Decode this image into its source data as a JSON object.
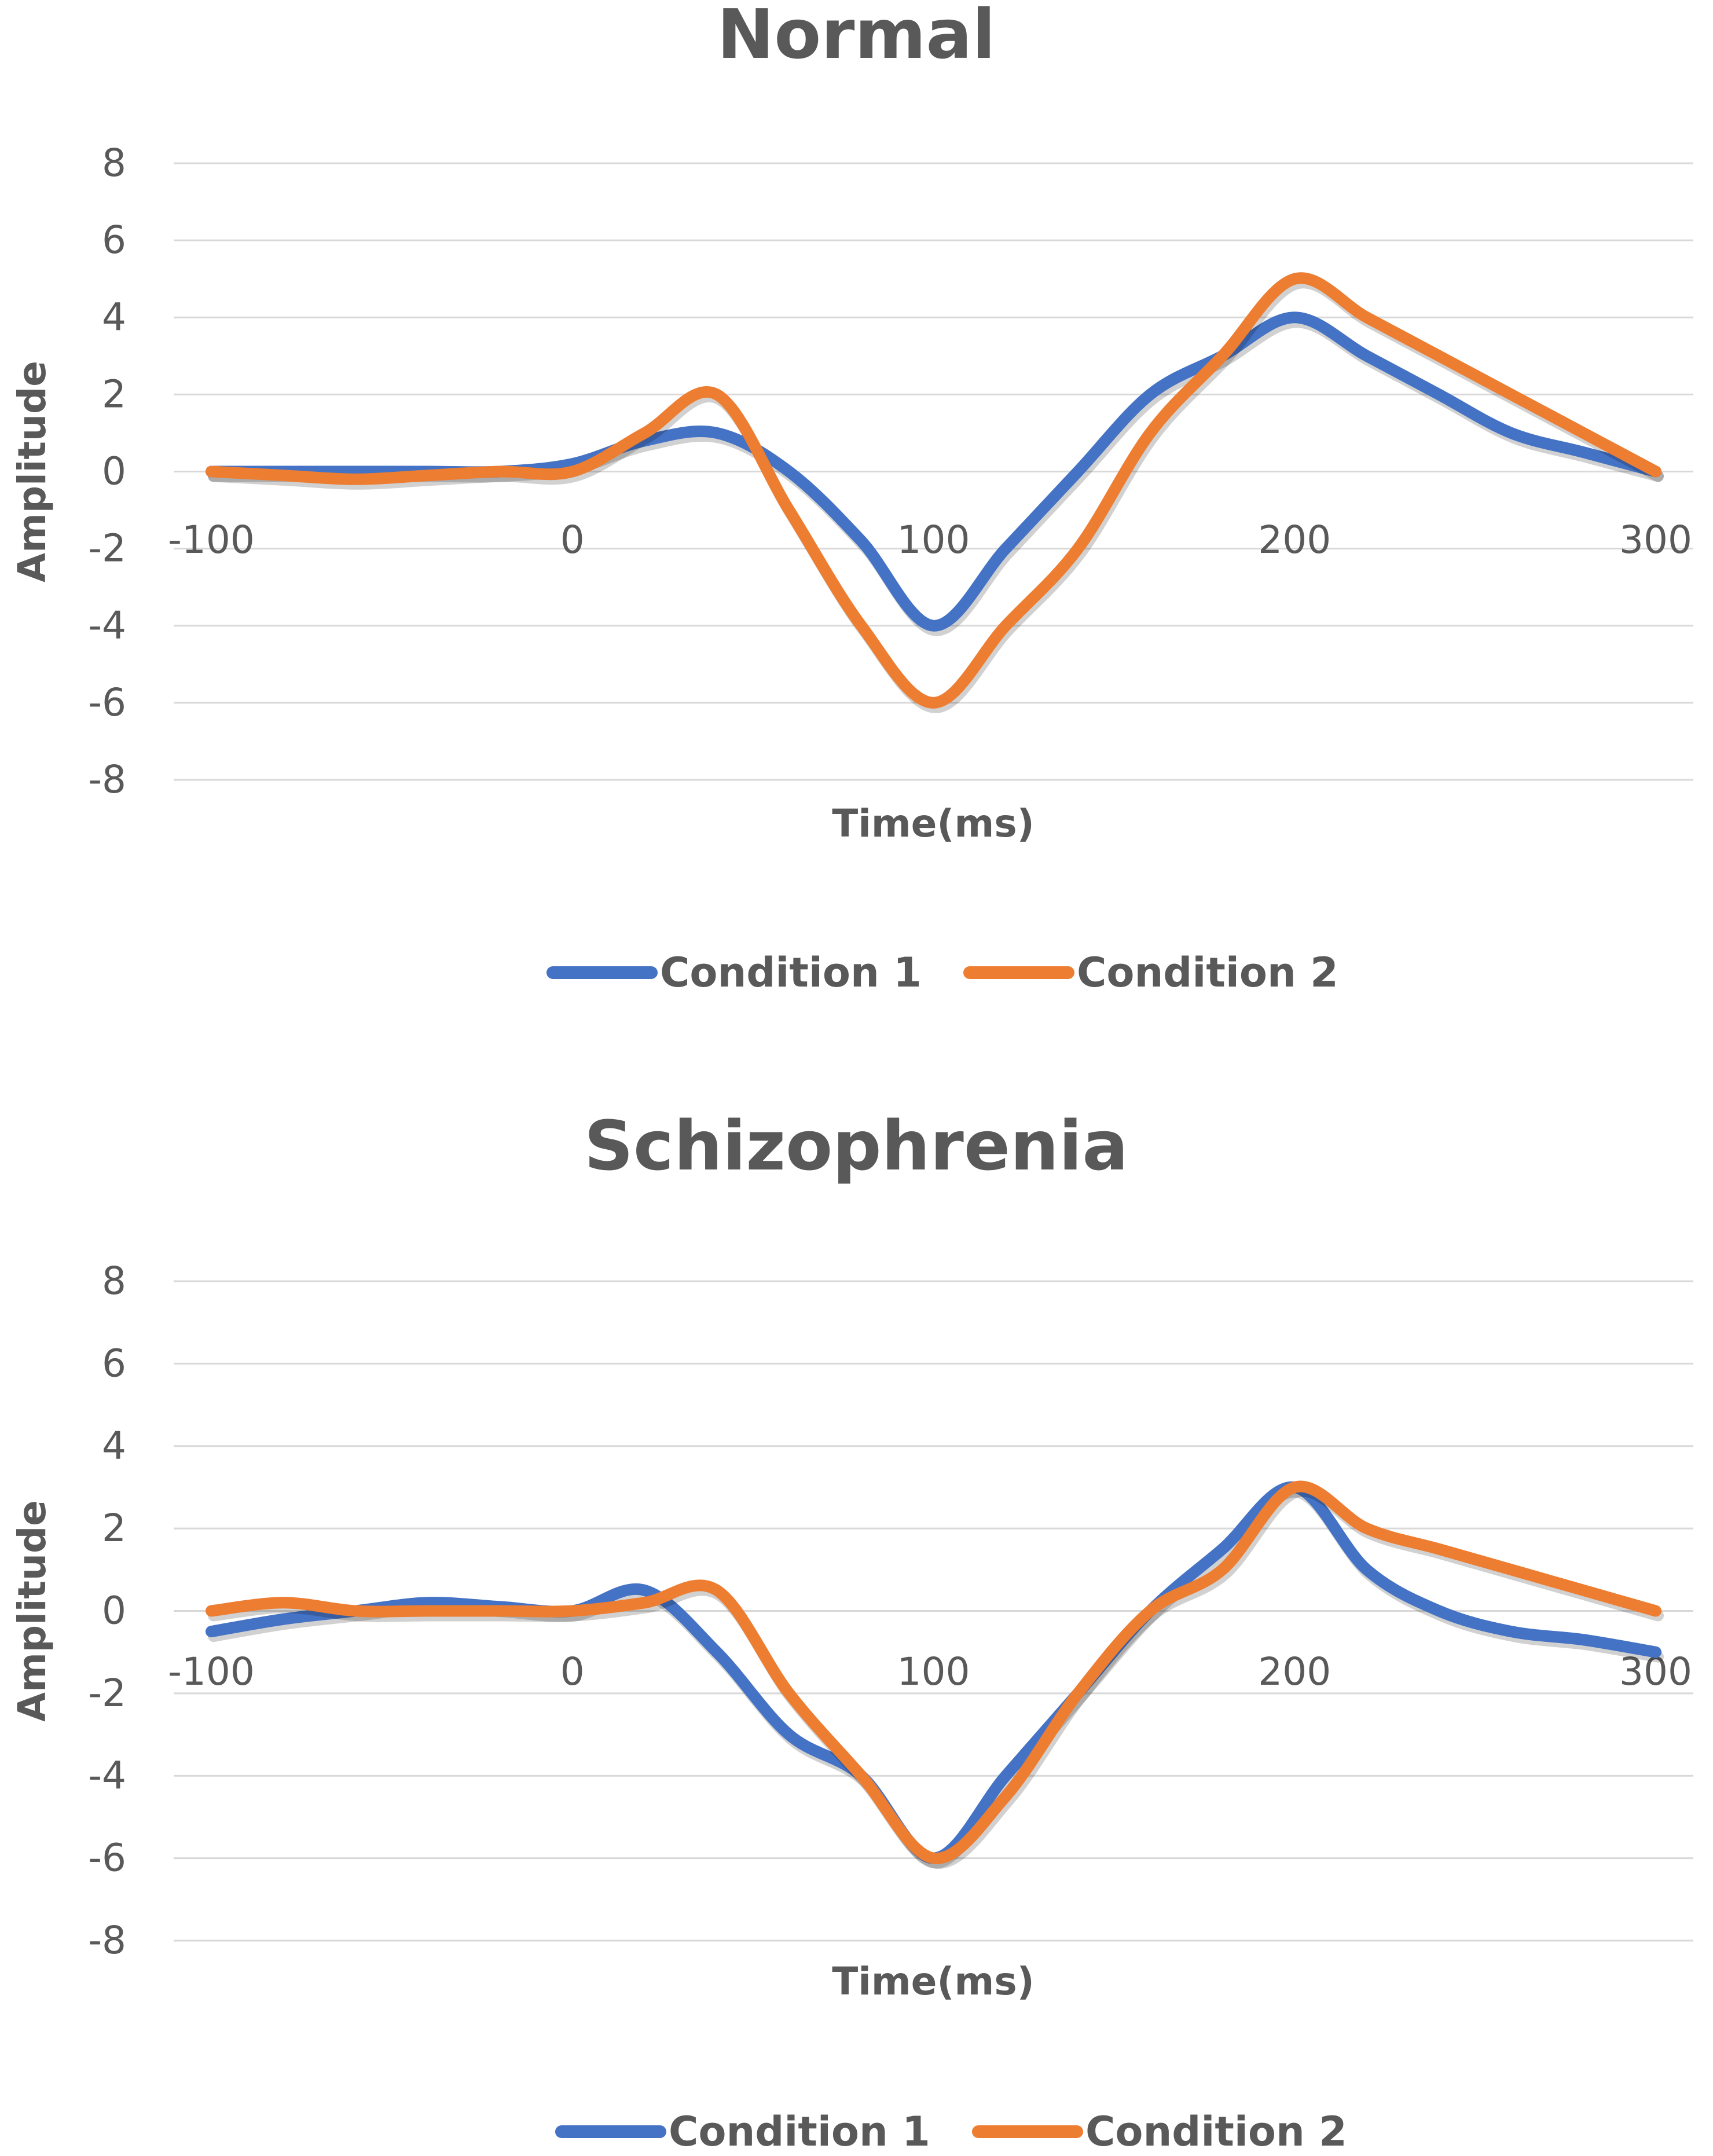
{
  "chart_data": [
    {
      "type": "line",
      "title": "Normal",
      "xlabel": "Time(ms)",
      "ylabel": "Amplitude",
      "xlim": [
        -100,
        300
      ],
      "ylim": [
        -8,
        8
      ],
      "x_ticks": [
        "-100",
        "0",
        "100",
        "200",
        "300"
      ],
      "y_ticks": [
        "8",
        "6",
        "4",
        "2",
        "0",
        "-2",
        "-4",
        "-6",
        "-8"
      ],
      "grid": true,
      "legend_position": "bottom",
      "x": [
        -100,
        -80,
        -60,
        -40,
        -20,
        0,
        20,
        40,
        60,
        80,
        100,
        120,
        140,
        160,
        180,
        200,
        220,
        240,
        260,
        280,
        300
      ],
      "series": [
        {
          "name": "Condition 1",
          "color": "#4472c4",
          "values": [
            0,
            0,
            0,
            0,
            0,
            0.2,
            0.8,
            1.0,
            0,
            -1.8,
            -4.0,
            -2.0,
            0,
            2.0,
            3.0,
            4.0,
            3.0,
            2.0,
            1.0,
            0.5,
            0
          ]
        },
        {
          "name": "Condition 2",
          "color": "#ed7d31",
          "values": [
            0,
            -0.1,
            -0.2,
            -0.1,
            0,
            0,
            1.0,
            2.0,
            -1.0,
            -4.0,
            -6.0,
            -4.0,
            -2.0,
            1.0,
            3.0,
            5.0,
            4.0,
            3.0,
            2.0,
            1.0,
            0
          ]
        }
      ]
    },
    {
      "type": "line",
      "title": "Schizophrenia",
      "xlabel": "Time(ms)",
      "ylabel": "Amplitude",
      "xlim": [
        -100,
        300
      ],
      "ylim": [
        -8,
        8
      ],
      "x_ticks": [
        "-100",
        "0",
        "100",
        "200",
        "300"
      ],
      "y_ticks": [
        "8",
        "6",
        "4",
        "2",
        "0",
        "-2",
        "-4",
        "-6",
        "-8"
      ],
      "grid": true,
      "legend_position": "bottom",
      "x": [
        -100,
        -80,
        -60,
        -40,
        -20,
        0,
        20,
        40,
        60,
        80,
        100,
        120,
        140,
        160,
        180,
        200,
        220,
        240,
        260,
        280,
        300
      ],
      "series": [
        {
          "name": "Condition 1",
          "color": "#4472c4",
          "values": [
            -0.5,
            -0.2,
            0,
            0.2,
            0.1,
            0,
            0.5,
            -1.0,
            -3.0,
            -4.0,
            -6.0,
            -4.0,
            -2.0,
            0,
            1.5,
            3.0,
            1.0,
            0,
            -0.5,
            -0.7,
            -1.0
          ]
        },
        {
          "name": "Condition 2",
          "color": "#ed7d31",
          "values": [
            0,
            0.2,
            0,
            0,
            0,
            0,
            0.2,
            0.5,
            -2.0,
            -4.0,
            -6.0,
            -4.5,
            -2.0,
            0,
            1.0,
            3.0,
            2.0,
            1.5,
            1.0,
            0.5,
            0
          ]
        }
      ]
    }
  ]
}
